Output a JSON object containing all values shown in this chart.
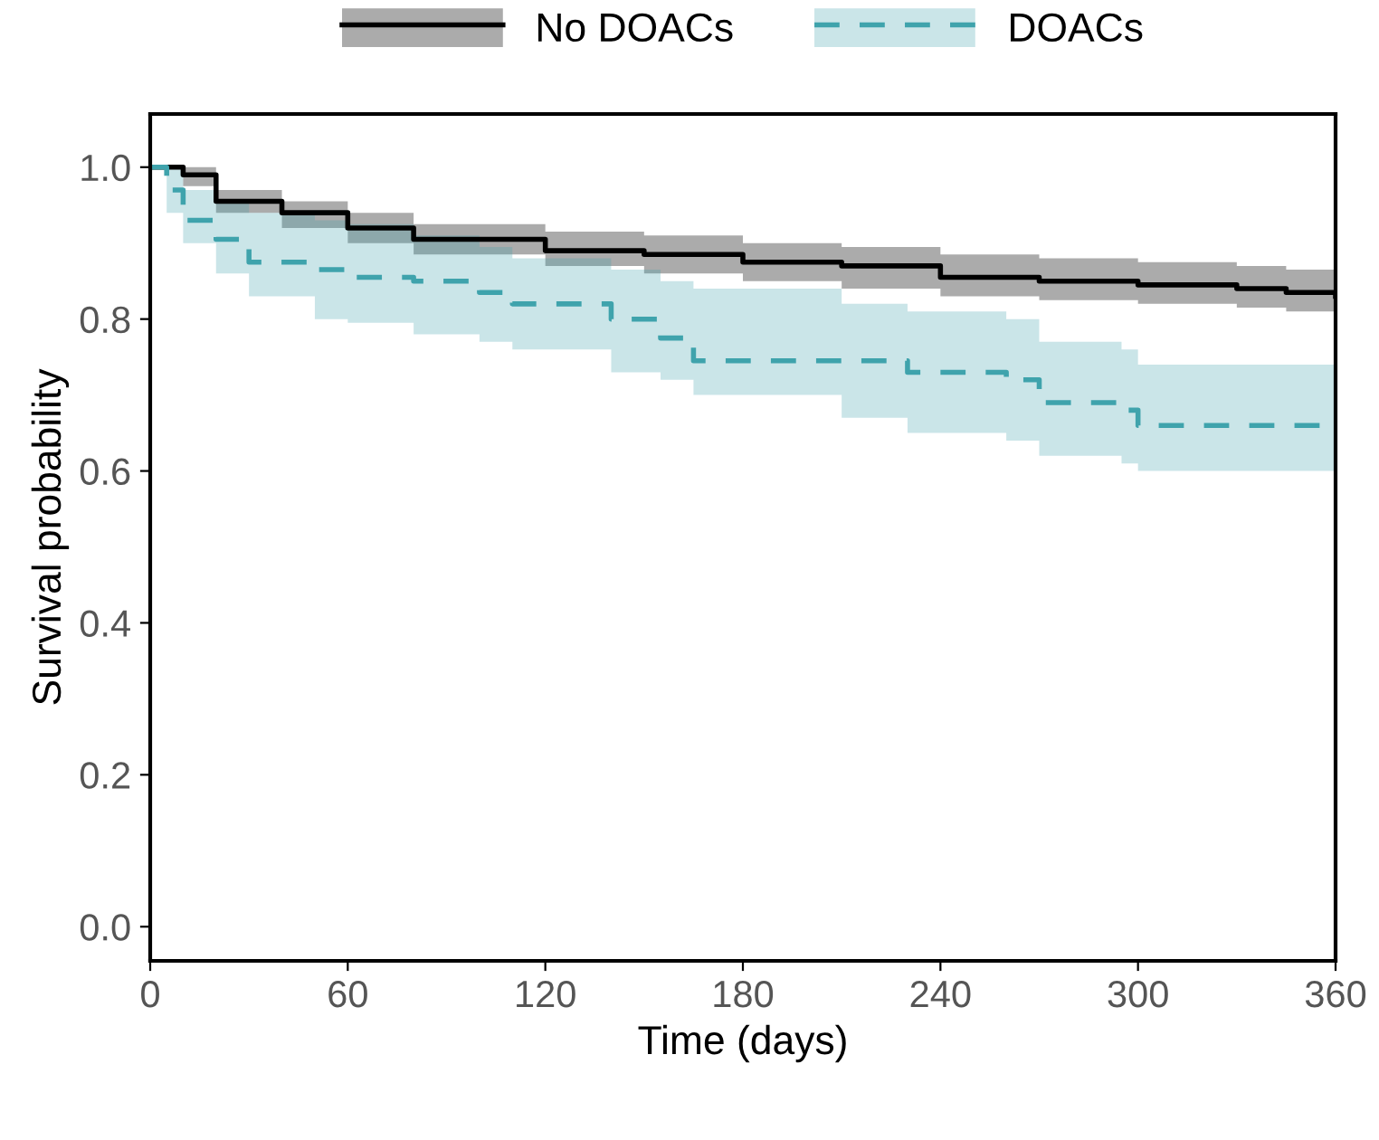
{
  "chart_data": {
    "type": "step",
    "xlabel": "Time (days)",
    "ylabel": "Survival probability",
    "xlim": [
      0,
      360
    ],
    "xticks": [
      0,
      60,
      120,
      180,
      240,
      300,
      360
    ],
    "ylim": [
      -0.045,
      1.07
    ],
    "yticks": [
      {
        "value": 0,
        "label": "0.0"
      },
      {
        "value": 0.2,
        "label": "0.2"
      },
      {
        "value": 0.4,
        "label": "0.4"
      },
      {
        "value": 0.6,
        "label": "0.6"
      },
      {
        "value": 0.8,
        "label": "0.8"
      },
      {
        "value": 1,
        "label": "1.0"
      }
    ],
    "grid": false,
    "legend": "top",
    "series": [
      {
        "name": "No DOACs",
        "color": "#000000",
        "line_style": "solid",
        "x": [
          0,
          10,
          20,
          40,
          60,
          80,
          120,
          150,
          180,
          210,
          240,
          270,
          300,
          330,
          345,
          360
        ],
        "values": [
          1.0,
          0.99,
          0.955,
          0.94,
          0.92,
          0.905,
          0.89,
          0.885,
          0.875,
          0.87,
          0.855,
          0.85,
          0.845,
          0.84,
          0.835,
          0.83
        ],
        "lower": [
          1.0,
          0.975,
          0.94,
          0.92,
          0.9,
          0.885,
          0.87,
          0.86,
          0.85,
          0.84,
          0.83,
          0.825,
          0.82,
          0.815,
          0.81,
          0.805
        ],
        "upper": [
          1.0,
          1.0,
          0.97,
          0.955,
          0.94,
          0.925,
          0.915,
          0.91,
          0.9,
          0.895,
          0.885,
          0.88,
          0.875,
          0.87,
          0.865,
          0.86
        ]
      },
      {
        "name": "DOACs",
        "color": "#3fa3ac",
        "line_style": "dashed",
        "x": [
          0,
          5,
          10,
          20,
          30,
          50,
          60,
          80,
          100,
          110,
          140,
          155,
          165,
          210,
          230,
          260,
          270,
          295,
          300,
          360
        ],
        "values": [
          1.0,
          0.97,
          0.93,
          0.905,
          0.875,
          0.865,
          0.855,
          0.85,
          0.835,
          0.82,
          0.8,
          0.775,
          0.745,
          0.745,
          0.73,
          0.72,
          0.69,
          0.68,
          0.66,
          0.655
        ],
        "lower": [
          1.0,
          0.94,
          0.9,
          0.86,
          0.83,
          0.8,
          0.795,
          0.78,
          0.77,
          0.76,
          0.73,
          0.72,
          0.7,
          0.67,
          0.65,
          0.64,
          0.62,
          0.61,
          0.6,
          0.58
        ],
        "upper": [
          1.0,
          1.0,
          0.97,
          0.955,
          0.94,
          0.93,
          0.925,
          0.91,
          0.895,
          0.88,
          0.865,
          0.85,
          0.84,
          0.82,
          0.81,
          0.8,
          0.77,
          0.76,
          0.74,
          0.72
        ]
      }
    ]
  }
}
